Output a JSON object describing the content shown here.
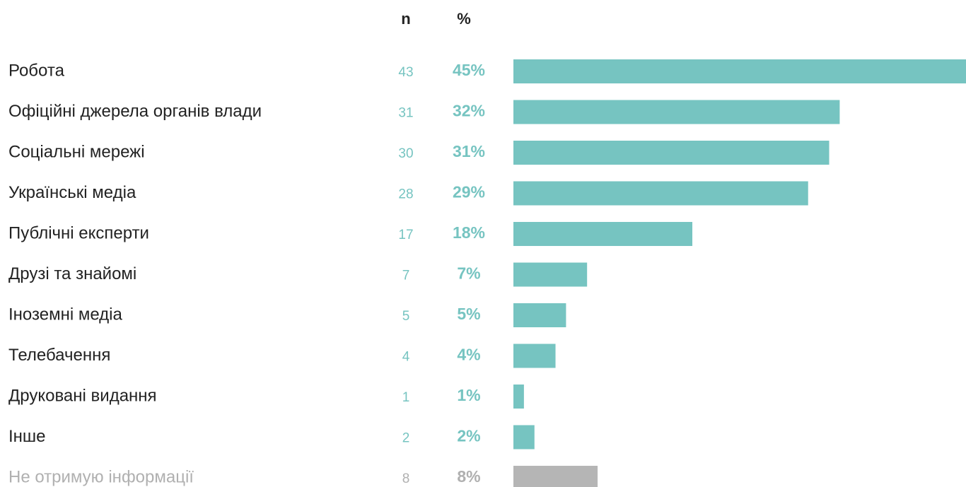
{
  "chart_data": {
    "type": "bar",
    "orientation": "horizontal",
    "n_header": "n",
    "pct_header": "%",
    "categories": [
      "Робота",
      "Офіційні джерела органів влади",
      "Соціальні мережі",
      "Українські медіа",
      "Публічні експерти",
      "Друзі та знайомі",
      "Іноземні медіа",
      "Телебачення",
      "Друковані видання",
      "Інше",
      "Не отримую інформації"
    ],
    "n": [
      43,
      31,
      30,
      28,
      17,
      7,
      5,
      4,
      1,
      2,
      8
    ],
    "values": [
      45,
      32,
      31,
      29,
      18,
      7,
      5,
      4,
      1,
      2,
      8
    ],
    "value_labels": [
      "45%",
      "32%",
      "31%",
      "29%",
      "18%",
      "7%",
      "5%",
      "4%",
      "1%",
      "2%",
      "8%"
    ],
    "colors": [
      "#76c4c1",
      "#76c4c1",
      "#76c4c1",
      "#76c4c1",
      "#76c4c1",
      "#76c4c1",
      "#76c4c1",
      "#76c4c1",
      "#76c4c1",
      "#76c4c1",
      "#b5b5b5"
    ]
  }
}
